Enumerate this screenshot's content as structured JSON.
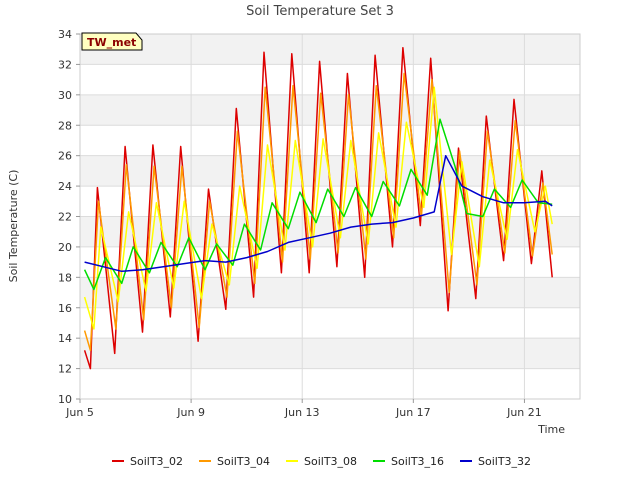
{
  "chart_data": {
    "type": "line",
    "title": "Soil Temperature Set 3",
    "xlabel": "Time",
    "ylabel": "Soil Temperature (C)",
    "badge": "TW_met",
    "ylim": [
      10,
      34
    ],
    "yticks": [
      10,
      12,
      14,
      16,
      18,
      20,
      22,
      24,
      26,
      28,
      30,
      32,
      34
    ],
    "xlim": [
      "2024-06-05",
      "2024-06-23"
    ],
    "xticks": [
      {
        "label": "Jun 5",
        "date": "2024-06-05"
      },
      {
        "label": "Jun 9",
        "date": "2024-06-09"
      },
      {
        "label": "Jun 13",
        "date": "2024-06-13"
      },
      {
        "label": "Jun 17",
        "date": "2024-06-17"
      },
      {
        "label": "Jun 21",
        "date": "2024-06-21"
      }
    ],
    "grid": true,
    "legend_position": "bottom",
    "colors": {
      "SoilT3_02": "#dd0000",
      "SoilT3_04": "#ff9900",
      "SoilT3_08": "#ffff00",
      "SoilT3_16": "#00dd00",
      "SoilT3_32": "#0000cc",
      "band": "#f2f2f2",
      "grid": "#dcdcdc",
      "badge_fill": "#ffffc0"
    },
    "series": [
      {
        "name": "SoilT3_02",
        "color": "#dd0000",
        "points": [
          [
            "2024-06-05 04:00",
            13.2
          ],
          [
            "2024-06-05 09:00",
            12.0
          ],
          [
            "2024-06-05 15:00",
            23.9
          ],
          [
            "2024-06-06 06:00",
            13.0
          ],
          [
            "2024-06-06 15:00",
            26.6
          ],
          [
            "2024-06-07 06:00",
            14.4
          ],
          [
            "2024-06-07 15:00",
            26.7
          ],
          [
            "2024-06-08 06:00",
            15.4
          ],
          [
            "2024-06-08 15:00",
            26.6
          ],
          [
            "2024-06-09 06:00",
            13.8
          ],
          [
            "2024-06-09 15:00",
            23.8
          ],
          [
            "2024-06-10 06:00",
            15.9
          ],
          [
            "2024-06-10 15:00",
            29.1
          ],
          [
            "2024-06-11 06:00",
            16.7
          ],
          [
            "2024-06-11 15:00",
            32.8
          ],
          [
            "2024-06-12 06:00",
            18.3
          ],
          [
            "2024-06-12 15:00",
            32.7
          ],
          [
            "2024-06-13 06:00",
            18.3
          ],
          [
            "2024-06-13 15:00",
            32.2
          ],
          [
            "2024-06-14 06:00",
            18.7
          ],
          [
            "2024-06-14 15:00",
            31.4
          ],
          [
            "2024-06-15 06:00",
            18.0
          ],
          [
            "2024-06-15 15:00",
            32.6
          ],
          [
            "2024-06-16 06:00",
            20.0
          ],
          [
            "2024-06-16 15:00",
            33.1
          ],
          [
            "2024-06-17 06:00",
            21.4
          ],
          [
            "2024-06-17 15:00",
            32.4
          ],
          [
            "2024-06-18 06:00",
            15.8
          ],
          [
            "2024-06-18 15:00",
            26.5
          ],
          [
            "2024-06-19 06:00",
            16.6
          ],
          [
            "2024-06-19 15:00",
            28.6
          ],
          [
            "2024-06-20 06:00",
            19.1
          ],
          [
            "2024-06-20 15:00",
            29.7
          ],
          [
            "2024-06-21 06:00",
            18.9
          ],
          [
            "2024-06-21 15:00",
            25.0
          ],
          [
            "2024-06-22 00:00",
            18.0
          ]
        ]
      },
      {
        "name": "SoilT3_04",
        "color": "#ff9900",
        "points": [
          [
            "2024-06-05 04:00",
            14.5
          ],
          [
            "2024-06-05 09:00",
            13.2
          ],
          [
            "2024-06-05 16:00",
            23.0
          ],
          [
            "2024-06-06 07:00",
            14.6
          ],
          [
            "2024-06-06 16:00",
            25.4
          ],
          [
            "2024-06-07 07:00",
            15.2
          ],
          [
            "2024-06-07 16:00",
            25.3
          ],
          [
            "2024-06-08 07:00",
            16.0
          ],
          [
            "2024-06-08 16:00",
            25.3
          ],
          [
            "2024-06-09 07:00",
            14.7
          ],
          [
            "2024-06-09 16:00",
            23.0
          ],
          [
            "2024-06-10 07:00",
            16.7
          ],
          [
            "2024-06-10 16:00",
            27.6
          ],
          [
            "2024-06-11 07:00",
            17.6
          ],
          [
            "2024-06-11 16:00",
            30.5
          ],
          [
            "2024-06-12 07:00",
            19.0
          ],
          [
            "2024-06-12 16:00",
            30.6
          ],
          [
            "2024-06-13 07:00",
            19.2
          ],
          [
            "2024-06-13 16:00",
            30.1
          ],
          [
            "2024-06-14 07:00",
            19.6
          ],
          [
            "2024-06-14 16:00",
            30.0
          ],
          [
            "2024-06-15 07:00",
            19.2
          ],
          [
            "2024-06-15 16:00",
            30.6
          ],
          [
            "2024-06-16 07:00",
            20.6
          ],
          [
            "2024-06-16 16:00",
            31.4
          ],
          [
            "2024-06-17 07:00",
            22.0
          ],
          [
            "2024-06-17 16:00",
            31.0
          ],
          [
            "2024-06-18 07:00",
            17.0
          ],
          [
            "2024-06-18 16:00",
            26.3
          ],
          [
            "2024-06-19 07:00",
            17.5
          ],
          [
            "2024-06-19 16:00",
            27.6
          ],
          [
            "2024-06-20 07:00",
            19.6
          ],
          [
            "2024-06-20 16:00",
            28.3
          ],
          [
            "2024-06-21 07:00",
            19.4
          ],
          [
            "2024-06-21 16:00",
            24.2
          ],
          [
            "2024-06-22 00:00",
            19.5
          ]
        ]
      },
      {
        "name": "SoilT3_08",
        "color": "#ffff00",
        "points": [
          [
            "2024-06-05 04:00",
            16.7
          ],
          [
            "2024-06-05 12:00",
            14.6
          ],
          [
            "2024-06-05 18:00",
            21.3
          ],
          [
            "2024-06-06 09:00",
            16.4
          ],
          [
            "2024-06-06 18:00",
            22.3
          ],
          [
            "2024-06-07 09:00",
            17.1
          ],
          [
            "2024-06-07 18:00",
            22.9
          ],
          [
            "2024-06-08 09:00",
            17.3
          ],
          [
            "2024-06-08 18:00",
            23.0
          ],
          [
            "2024-06-09 09:00",
            16.6
          ],
          [
            "2024-06-09 18:00",
            21.5
          ],
          [
            "2024-06-10 09:00",
            17.5
          ],
          [
            "2024-06-10 18:00",
            24.0
          ],
          [
            "2024-06-11 09:00",
            18.6
          ],
          [
            "2024-06-11 18:00",
            26.7
          ],
          [
            "2024-06-12 09:00",
            19.8
          ],
          [
            "2024-06-12 18:00",
            27.0
          ],
          [
            "2024-06-13 09:00",
            20.0
          ],
          [
            "2024-06-13 18:00",
            27.1
          ],
          [
            "2024-06-14 09:00",
            20.6
          ],
          [
            "2024-06-14 18:00",
            27.0
          ],
          [
            "2024-06-15 09:00",
            20.2
          ],
          [
            "2024-06-15 18:00",
            27.5
          ],
          [
            "2024-06-16 09:00",
            21.3
          ],
          [
            "2024-06-16 18:00",
            28.2
          ],
          [
            "2024-06-17 09:00",
            22.6
          ],
          [
            "2024-06-17 18:00",
            30.5
          ],
          [
            "2024-06-18 09:00",
            19.5
          ],
          [
            "2024-06-18 18:00",
            25.6
          ],
          [
            "2024-06-19 09:00",
            18.7
          ],
          [
            "2024-06-19 18:00",
            25.7
          ],
          [
            "2024-06-20 09:00",
            20.5
          ],
          [
            "2024-06-20 18:00",
            26.4
          ],
          [
            "2024-06-21 09:00",
            21.0
          ],
          [
            "2024-06-21 18:00",
            24.0
          ],
          [
            "2024-06-22 00:00",
            21.5
          ]
        ]
      },
      {
        "name": "SoilT3_16",
        "color": "#00dd00",
        "points": [
          [
            "2024-06-05 04:00",
            18.5
          ],
          [
            "2024-06-05 12:00",
            17.2
          ],
          [
            "2024-06-05 22:00",
            19.3
          ],
          [
            "2024-06-06 12:00",
            17.6
          ],
          [
            "2024-06-06 22:00",
            20.0
          ],
          [
            "2024-06-07 12:00",
            18.3
          ],
          [
            "2024-06-07 22:00",
            20.3
          ],
          [
            "2024-06-08 12:00",
            18.7
          ],
          [
            "2024-06-08 22:00",
            20.6
          ],
          [
            "2024-06-09 12:00",
            18.5
          ],
          [
            "2024-06-09 22:00",
            20.2
          ],
          [
            "2024-06-10 12:00",
            18.8
          ],
          [
            "2024-06-10 22:00",
            21.5
          ],
          [
            "2024-06-11 12:00",
            19.8
          ],
          [
            "2024-06-11 22:00",
            22.9
          ],
          [
            "2024-06-12 12:00",
            21.2
          ],
          [
            "2024-06-12 22:00",
            23.6
          ],
          [
            "2024-06-13 12:00",
            21.6
          ],
          [
            "2024-06-13 22:00",
            23.8
          ],
          [
            "2024-06-14 12:00",
            22.0
          ],
          [
            "2024-06-14 22:00",
            23.9
          ],
          [
            "2024-06-15 12:00",
            22.0
          ],
          [
            "2024-06-15 22:00",
            24.3
          ],
          [
            "2024-06-16 12:00",
            22.7
          ],
          [
            "2024-06-16 22:00",
            25.1
          ],
          [
            "2024-06-17 12:00",
            23.4
          ],
          [
            "2024-06-17 23:00",
            28.4
          ],
          [
            "2024-06-18 12:00",
            25.3
          ],
          [
            "2024-06-18 22:00",
            22.2
          ],
          [
            "2024-06-19 12:00",
            22.0
          ],
          [
            "2024-06-19 22:00",
            23.8
          ],
          [
            "2024-06-20 12:00",
            22.6
          ],
          [
            "2024-06-20 22:00",
            24.4
          ],
          [
            "2024-06-21 12:00",
            22.9
          ],
          [
            "2024-06-22 00:00",
            22.8
          ]
        ]
      },
      {
        "name": "SoilT3_32",
        "color": "#0000cc",
        "points": [
          [
            "2024-06-05 04:00",
            19.0
          ],
          [
            "2024-06-05 20:00",
            18.7
          ],
          [
            "2024-06-06 12:00",
            18.4
          ],
          [
            "2024-06-07 06:00",
            18.5
          ],
          [
            "2024-06-08 00:00",
            18.7
          ],
          [
            "2024-06-08 18:00",
            18.9
          ],
          [
            "2024-06-09 12:00",
            19.1
          ],
          [
            "2024-06-10 06:00",
            19.0
          ],
          [
            "2024-06-11 00:00",
            19.3
          ],
          [
            "2024-06-11 18:00",
            19.7
          ],
          [
            "2024-06-12 12:00",
            20.3
          ],
          [
            "2024-06-13 06:00",
            20.6
          ],
          [
            "2024-06-14 00:00",
            20.9
          ],
          [
            "2024-06-14 18:00",
            21.3
          ],
          [
            "2024-06-15 12:00",
            21.5
          ],
          [
            "2024-06-16 06:00",
            21.6
          ],
          [
            "2024-06-17 00:00",
            21.9
          ],
          [
            "2024-06-17 18:00",
            22.3
          ],
          [
            "2024-06-18 04:00",
            26.0
          ],
          [
            "2024-06-18 18:00",
            24.0
          ],
          [
            "2024-06-19 12:00",
            23.3
          ],
          [
            "2024-06-20 06:00",
            22.9
          ],
          [
            "2024-06-21 00:00",
            22.9
          ],
          [
            "2024-06-21 18:00",
            23.0
          ],
          [
            "2024-06-22 00:00",
            22.7
          ]
        ]
      }
    ]
  }
}
